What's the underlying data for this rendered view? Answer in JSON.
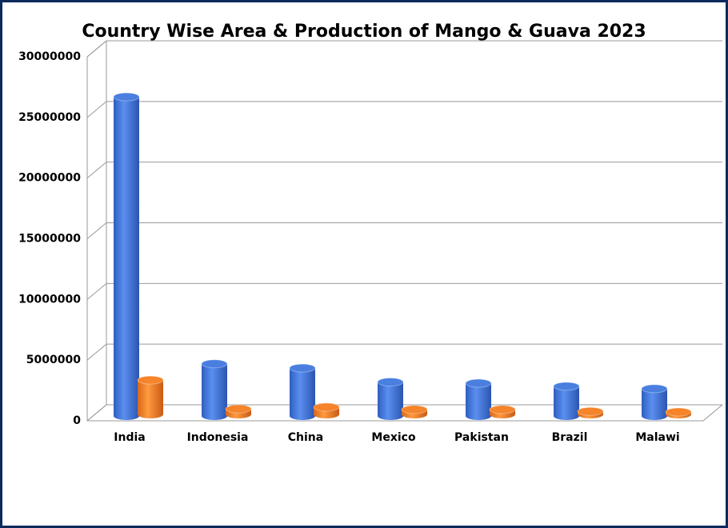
{
  "chart_data": {
    "type": "bar3d",
    "title": "Country Wise Area & Production of Mango & Guava 2023",
    "categories": [
      "India",
      "Indonesia",
      "China",
      "Mexico",
      "Pakistan",
      "Brazil",
      "Malawi"
    ],
    "series": [
      {
        "color": "#4a7fe0",
        "values": [
          26300000,
          4300000,
          3950000,
          2800000,
          2700000,
          2450000,
          2250000
        ]
      },
      {
        "color": "#f5842a",
        "values": [
          2830000,
          450000,
          600000,
          400000,
          400000,
          250000,
          200000
        ]
      }
    ],
    "ylim": [
      0,
      30000000
    ],
    "yticks": [
      0,
      5000000,
      10000000,
      15000000,
      20000000,
      25000000,
      30000000
    ],
    "grid": true
  }
}
